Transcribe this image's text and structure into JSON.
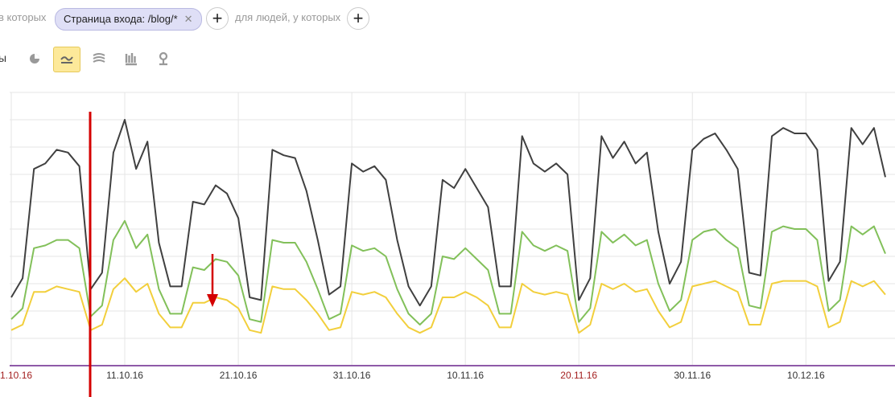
{
  "toolbar": {
    "prefix": "в которых",
    "chip": "Страница входа: /blog/*",
    "people": "для людей, у которых",
    "row_prefix": "ы"
  },
  "chart_data": {
    "type": "line",
    "categories": [
      "1.10.16",
      null,
      null,
      null,
      null,
      null,
      null,
      null,
      null,
      null,
      "11.10.16",
      null,
      null,
      null,
      null,
      null,
      null,
      null,
      null,
      null,
      "21.10.16",
      null,
      null,
      null,
      null,
      null,
      null,
      null,
      null,
      null,
      "31.10.16",
      null,
      null,
      null,
      null,
      null,
      null,
      null,
      null,
      null,
      "10.11.16",
      null,
      null,
      null,
      null,
      null,
      null,
      null,
      null,
      null,
      "20.11.16",
      null,
      null,
      null,
      null,
      null,
      null,
      null,
      null,
      null,
      "30.11.16",
      null,
      null,
      null,
      null,
      null,
      null,
      null,
      null,
      null,
      "10.12.16",
      null,
      null,
      null,
      null,
      null,
      null,
      null
    ],
    "weekend_categories": [
      0,
      50
    ],
    "weekend_color": "#a31f1f",
    "label_color": "#333333",
    "ylim": [
      0,
      100
    ],
    "gridlines": [
      0,
      10,
      20,
      30,
      40,
      50,
      60,
      70,
      80,
      90,
      100
    ],
    "grid": true,
    "series": [
      {
        "color": "#404040",
        "values": [
          25,
          32,
          72,
          74,
          79,
          78,
          73,
          28,
          34,
          78,
          90,
          72,
          82,
          45,
          29,
          29,
          60,
          59,
          66,
          63,
          54,
          25,
          24,
          79,
          77,
          76,
          64,
          46,
          26,
          29,
          74,
          71,
          73,
          68,
          46,
          29,
          22,
          29,
          68,
          65,
          72,
          65,
          58,
          29,
          29,
          84,
          74,
          71,
          74,
          70,
          24,
          32,
          84,
          76,
          82,
          74,
          78,
          49,
          30,
          38,
          79,
          83,
          85,
          79,
          72,
          34,
          33,
          84,
          87,
          85,
          85,
          79,
          31,
          38,
          87,
          81,
          87,
          69
        ]
      },
      {
        "color": "#82c05a",
        "values": [
          17,
          21,
          43,
          44,
          46,
          46,
          43,
          18,
          22,
          46,
          53,
          43,
          48,
          28,
          19,
          19,
          36,
          35,
          39,
          38,
          33,
          17,
          16,
          46,
          45,
          45,
          38,
          28,
          17,
          19,
          44,
          42,
          43,
          40,
          28,
          19,
          15,
          19,
          40,
          39,
          43,
          39,
          35,
          19,
          19,
          49,
          44,
          42,
          44,
          42,
          16,
          21,
          49,
          45,
          48,
          44,
          46,
          30,
          20,
          24,
          46,
          49,
          50,
          46,
          43,
          22,
          21,
          49,
          51,
          50,
          50,
          46,
          20,
          24,
          51,
          48,
          51,
          41
        ]
      },
      {
        "color": "#f2cf3c",
        "values": [
          13,
          15,
          27,
          27,
          29,
          28,
          27,
          13,
          15,
          28,
          32,
          27,
          30,
          19,
          14,
          14,
          23,
          23,
          25,
          24,
          21,
          13,
          12,
          29,
          28,
          28,
          24,
          19,
          13,
          14,
          27,
          26,
          27,
          25,
          19,
          14,
          12,
          14,
          25,
          25,
          27,
          25,
          22,
          14,
          14,
          30,
          27,
          26,
          27,
          26,
          12,
          15,
          30,
          28,
          30,
          27,
          28,
          20,
          14,
          16,
          29,
          30,
          31,
          29,
          27,
          15,
          15,
          30,
          31,
          31,
          31,
          29,
          14,
          16,
          31,
          29,
          31,
          26
        ]
      }
    ]
  }
}
